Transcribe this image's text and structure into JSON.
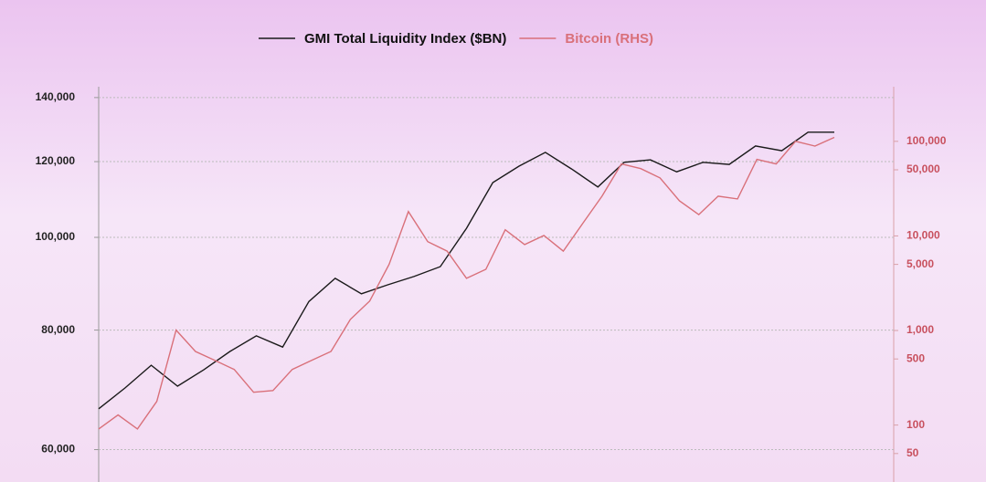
{
  "chart_data": {
    "type": "line",
    "log_scale": true,
    "grid": true,
    "legend": "top",
    "series": [
      {
        "name": "GMI Total Liquidity Index ($BN)",
        "color": "#1a1a1a",
        "values": [
          66200,
          69600,
          73500,
          69900,
          72700,
          76000,
          78900,
          76800,
          85700,
          90600,
          87300,
          89200,
          91000,
          93200,
          102200,
          114100,
          118700,
          122700,
          117900,
          112900,
          119800,
          120500,
          117100,
          119800,
          119200,
          124600,
          123200,
          128800,
          128800
        ]
      },
      {
        "name": "Bitcoin (RHS)",
        "color": "#d9707a",
        "axis": "y2",
        "values": [
          91,
          128,
          91,
          178,
          1010,
          600,
          484,
          387,
          222,
          232,
          387,
          484,
          600,
          1310,
          2050,
          5000,
          18100,
          8700,
          6900,
          3560,
          4440,
          11600,
          8100,
          10100,
          6900,
          13500,
          26300,
          57700,
          51500,
          41000,
          23500,
          16800,
          26300,
          24600,
          64500,
          57700,
          100000,
          89200,
          110000
        ]
      }
    ],
    "ylim": [
      55500,
      143700
    ],
    "yticks": [
      {
        "value": 60000,
        "label": "60,000"
      },
      {
        "value": 80000,
        "label": "80,000"
      },
      {
        "value": 100000,
        "label": "100,000"
      },
      {
        "value": 120000,
        "label": "120,000"
      },
      {
        "value": 140000,
        "label": "140,000"
      }
    ],
    "y2lim": [
      25,
      378000
    ],
    "y2ticks": [
      50,
      100,
      500,
      {
        "value": 1000,
        "label": "1,000"
      },
      {
        "value": 5000,
        "label": "5,000"
      },
      {
        "value": 10000,
        "label": "10,000"
      },
      {
        "value": 50000,
        "label": "50,000"
      },
      {
        "value": 100000,
        "label": "100,000"
      }
    ]
  }
}
